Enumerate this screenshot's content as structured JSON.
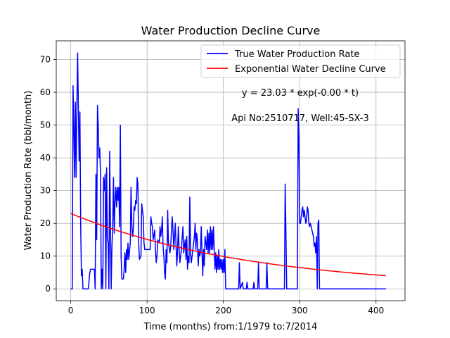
{
  "chart_data": {
    "type": "line",
    "title": "Water Production Decline Curve",
    "xlabel": "Time (months) from:1/1979 to:7/2014",
    "ylabel": "Water Production Rate (bbl/month)",
    "xlim": [
      -19,
      438
    ],
    "ylim": [
      -3.6,
      75.7
    ],
    "xticks": [
      0,
      100,
      200,
      300,
      400
    ],
    "yticks": [
      0,
      10,
      20,
      30,
      40,
      50,
      60,
      70
    ],
    "grid": true,
    "legend_position": "top-right",
    "annotations": [
      "y = 23.03 * exp(-0.00 * t)",
      "Api No:2510717, Well:45-SX-3"
    ],
    "series": [
      {
        "name": "True Water Production Rate",
        "color": "#0000ff",
        "points": [
          [
            0,
            0
          ],
          [
            2,
            0
          ],
          [
            3,
            62
          ],
          [
            4,
            50
          ],
          [
            5,
            34
          ],
          [
            6,
            57
          ],
          [
            7,
            34
          ],
          [
            8,
            55
          ],
          [
            9,
            72
          ],
          [
            10,
            55
          ],
          [
            11,
            39
          ],
          [
            12,
            54
          ],
          [
            13,
            20
          ],
          [
            14,
            4
          ],
          [
            15,
            6
          ],
          [
            16,
            0
          ],
          [
            23,
            0
          ],
          [
            25,
            5
          ],
          [
            26,
            6
          ],
          [
            31,
            6
          ],
          [
            32,
            0
          ],
          [
            33,
            35
          ],
          [
            34,
            15
          ],
          [
            35,
            56
          ],
          [
            36,
            50
          ],
          [
            37,
            40
          ],
          [
            38,
            43
          ],
          [
            39,
            35
          ],
          [
            40,
            0
          ],
          [
            41,
            6
          ],
          [
            42,
            0
          ],
          [
            43,
            34
          ],
          [
            44,
            30
          ],
          [
            45,
            35
          ],
          [
            46,
            0
          ],
          [
            47,
            37
          ],
          [
            48,
            15
          ],
          [
            49,
            14
          ],
          [
            50,
            0
          ],
          [
            51,
            42
          ],
          [
            52,
            20
          ],
          [
            53,
            0
          ],
          [
            54,
            13
          ],
          [
            55,
            19
          ],
          [
            56,
            34
          ],
          [
            57,
            17
          ],
          [
            58,
            27
          ],
          [
            59,
            31
          ],
          [
            60,
            25
          ],
          [
            61,
            31
          ],
          [
            62,
            27
          ],
          [
            63,
            31
          ],
          [
            64,
            19
          ],
          [
            65,
            50
          ],
          [
            66,
            10
          ],
          [
            67,
            3
          ],
          [
            69,
            3
          ],
          [
            70,
            6
          ],
          [
            71,
            11
          ],
          [
            72,
            5
          ],
          [
            73,
            12
          ],
          [
            74,
            9
          ],
          [
            75,
            14
          ],
          [
            76,
            9
          ],
          [
            78,
            14
          ],
          [
            79,
            31
          ],
          [
            80,
            20
          ],
          [
            81,
            16
          ],
          [
            82,
            18
          ],
          [
            83,
            25
          ],
          [
            84,
            24
          ],
          [
            85,
            27
          ],
          [
            86,
            26
          ],
          [
            87,
            34
          ],
          [
            88,
            32
          ],
          [
            89,
            14
          ],
          [
            90,
            9
          ],
          [
            92,
            10
          ],
          [
            93,
            26
          ],
          [
            94,
            24
          ],
          [
            95,
            22
          ],
          [
            96,
            14
          ],
          [
            97,
            12
          ],
          [
            104,
            12
          ],
          [
            105,
            22
          ],
          [
            106,
            20
          ],
          [
            107,
            19
          ],
          [
            108,
            15
          ],
          [
            110,
            18
          ],
          [
            111,
            12
          ],
          [
            112,
            8
          ],
          [
            113,
            10
          ],
          [
            114,
            15
          ],
          [
            116,
            14
          ],
          [
            117,
            19
          ],
          [
            118,
            16
          ],
          [
            119,
            18
          ],
          [
            120,
            22
          ],
          [
            121,
            13
          ],
          [
            122,
            10
          ],
          [
            123,
            5
          ],
          [
            124,
            3
          ],
          [
            125,
            12
          ],
          [
            126,
            8
          ],
          [
            127,
            24
          ],
          [
            128,
            14
          ],
          [
            130,
            11
          ],
          [
            131,
            13
          ],
          [
            132,
            18
          ],
          [
            133,
            22
          ],
          [
            134,
            18
          ],
          [
            135,
            12
          ],
          [
            136,
            16
          ],
          [
            137,
            20
          ],
          [
            138,
            13
          ],
          [
            139,
            7
          ],
          [
            140,
            12
          ],
          [
            141,
            19
          ],
          [
            142,
            12
          ],
          [
            143,
            8
          ],
          [
            145,
            12
          ],
          [
            147,
            19
          ],
          [
            148,
            11
          ],
          [
            150,
            15
          ],
          [
            151,
            9
          ],
          [
            152,
            16
          ],
          [
            153,
            6
          ],
          [
            154,
            10
          ],
          [
            155,
            8
          ],
          [
            156,
            28
          ],
          [
            157,
            11
          ],
          [
            158,
            8
          ],
          [
            160,
            12
          ],
          [
            162,
            16
          ],
          [
            163,
            20
          ],
          [
            164,
            12
          ],
          [
            165,
            17
          ],
          [
            166,
            15
          ],
          [
            167,
            7
          ],
          [
            168,
            12
          ],
          [
            169,
            10
          ],
          [
            170,
            11
          ],
          [
            171,
            19
          ],
          [
            172,
            11
          ],
          [
            173,
            4
          ],
          [
            174,
            12
          ],
          [
            175,
            7
          ],
          [
            176,
            16
          ],
          [
            178,
            12
          ],
          [
            179,
            18
          ],
          [
            180,
            11
          ],
          [
            181,
            17
          ],
          [
            182,
            11
          ],
          [
            183,
            19
          ],
          [
            184,
            12
          ],
          [
            185,
            18
          ],
          [
            186,
            12
          ],
          [
            187,
            19
          ],
          [
            188,
            12
          ],
          [
            189,
            6
          ],
          [
            190,
            11
          ],
          [
            191,
            5
          ],
          [
            192,
            10
          ],
          [
            193,
            6
          ],
          [
            194,
            12
          ],
          [
            195,
            6
          ],
          [
            196,
            9
          ],
          [
            197,
            6
          ],
          [
            198,
            9
          ],
          [
            199,
            5
          ],
          [
            200,
            9
          ],
          [
            201,
            5
          ],
          [
            202,
            12
          ],
          [
            203,
            0
          ],
          [
            220,
            0
          ],
          [
            221,
            8
          ],
          [
            222,
            0
          ],
          [
            225,
            2
          ],
          [
            226,
            0
          ],
          [
            230,
            0
          ],
          [
            231,
            2
          ],
          [
            232,
            0
          ],
          [
            235,
            0
          ],
          [
            236,
            0
          ],
          [
            239,
            0
          ],
          [
            240,
            2
          ],
          [
            241,
            0
          ],
          [
            244,
            0
          ],
          [
            245,
            0
          ],
          [
            246,
            8
          ],
          [
            247,
            0
          ],
          [
            256,
            0
          ],
          [
            257,
            8
          ],
          [
            258,
            0
          ],
          [
            280,
            0
          ],
          [
            281,
            32
          ],
          [
            282,
            17
          ],
          [
            283,
            0
          ],
          [
            297,
            0
          ],
          [
            298,
            55
          ],
          [
            299,
            46
          ],
          [
            300,
            20
          ],
          [
            301,
            20
          ],
          [
            302,
            22
          ],
          [
            303,
            24
          ],
          [
            304,
            25
          ],
          [
            305,
            22
          ],
          [
            306,
            24
          ],
          [
            307,
            22
          ],
          [
            308,
            20
          ],
          [
            309,
            21
          ],
          [
            310,
            25
          ],
          [
            311,
            24
          ],
          [
            312,
            20
          ],
          [
            313,
            19
          ],
          [
            314,
            20
          ],
          [
            315,
            19
          ],
          [
            316,
            18
          ],
          [
            317,
            17
          ],
          [
            318,
            16
          ],
          [
            319,
            13
          ],
          [
            320,
            14
          ],
          [
            321,
            11
          ],
          [
            322,
            16
          ],
          [
            323,
            0
          ],
          [
            324,
            20
          ],
          [
            325,
            21
          ],
          [
            326,
            0
          ],
          [
            330,
            0
          ],
          [
            413,
            0
          ]
        ]
      },
      {
        "name": "Exponential Water Decline Curve",
        "color": "#ff0000",
        "fit": {
          "a": 23.03,
          "k": 0.00422
        },
        "x_range": [
          0,
          413
        ]
      }
    ]
  }
}
